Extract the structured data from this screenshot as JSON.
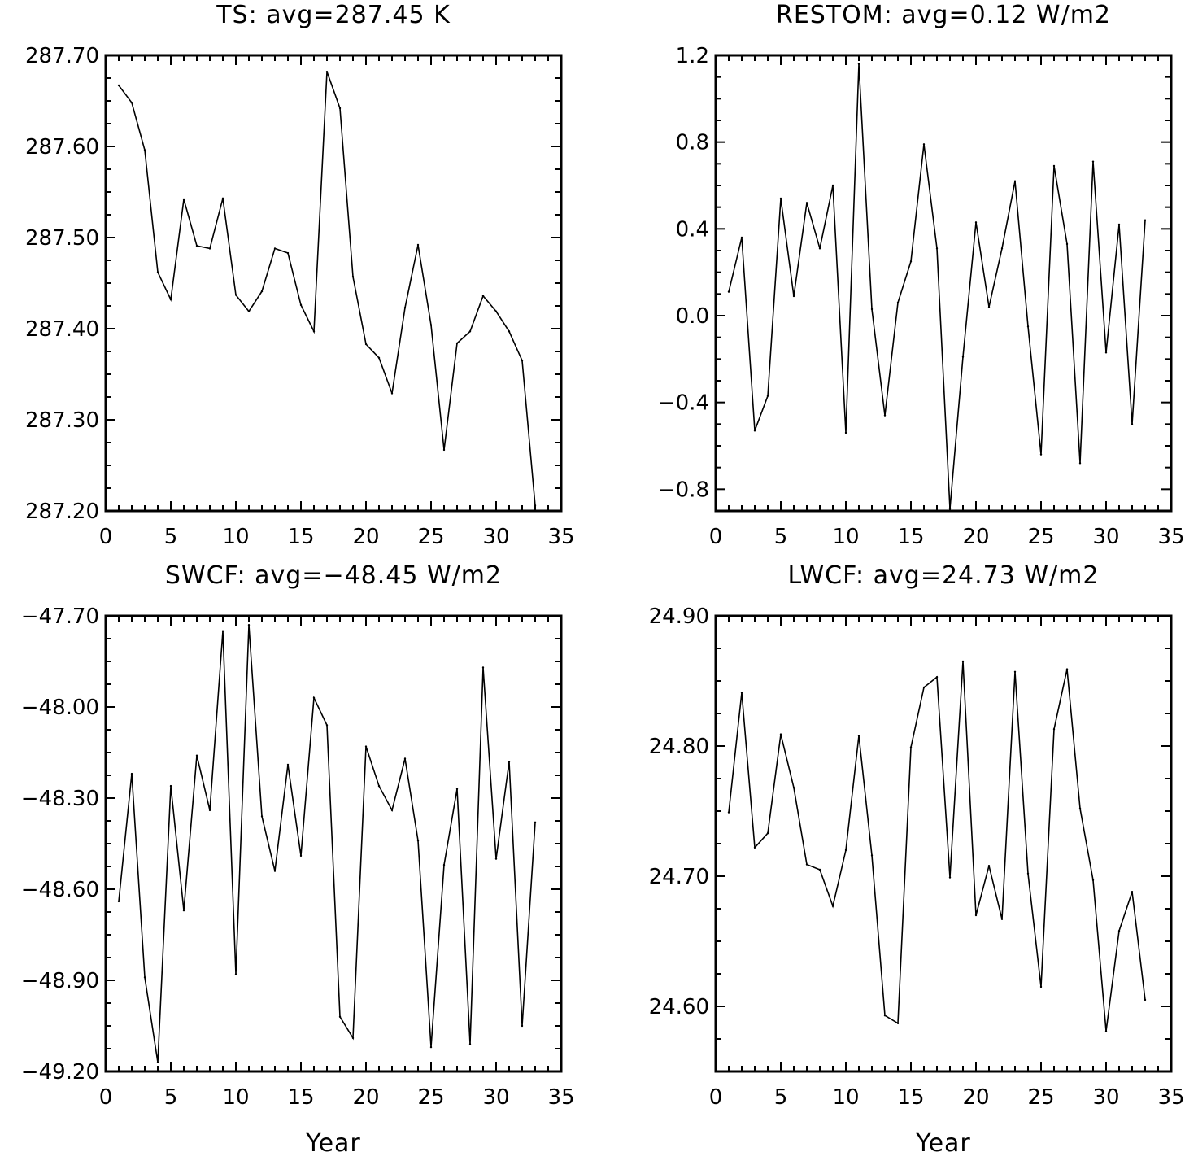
{
  "chart_data": [
    {
      "id": "ts",
      "type": "line",
      "title": "TS: avg=287.45 K",
      "xlabel": "",
      "ylabel": "",
      "xlim": [
        0,
        35
      ],
      "ylim": [
        287.2,
        287.7
      ],
      "x_ticks": [
        0,
        5,
        10,
        15,
        20,
        25,
        30,
        35
      ],
      "y_ticks": [
        287.2,
        287.3,
        287.4,
        287.5,
        287.6,
        287.7
      ],
      "y_tick_labels": [
        "287.20",
        "287.30",
        "287.40",
        "287.50",
        "287.60",
        "287.70"
      ],
      "x": [
        1,
        2,
        3,
        4,
        5,
        6,
        7,
        8,
        9,
        10,
        11,
        12,
        13,
        14,
        15,
        16,
        17,
        18,
        19,
        20,
        21,
        22,
        23,
        24,
        25,
        26,
        27,
        28,
        29,
        30,
        31,
        32,
        33
      ],
      "values": [
        287.667,
        287.648,
        287.596,
        287.462,
        287.432,
        287.542,
        287.491,
        287.488,
        287.543,
        287.437,
        287.419,
        287.441,
        287.488,
        287.483,
        287.426,
        287.397,
        287.682,
        287.642,
        287.457,
        287.383,
        287.368,
        287.329,
        287.423,
        287.492,
        287.404,
        287.267,
        287.384,
        287.397,
        287.436,
        287.419,
        287.397,
        287.365,
        287.206
      ],
      "grid": false
    },
    {
      "id": "restom",
      "type": "line",
      "title": "RESTOM: avg=0.12 W/m2",
      "xlabel": "",
      "ylabel": "",
      "xlim": [
        0,
        35
      ],
      "ylim": [
        -0.9,
        1.2
      ],
      "x_ticks": [
        0,
        5,
        10,
        15,
        20,
        25,
        30,
        35
      ],
      "y_ticks": [
        -0.8,
        -0.4,
        0.0,
        0.4,
        0.8,
        1.2
      ],
      "y_tick_labels": [
        "−0.8",
        "−0.4",
        "0.0",
        "0.4",
        "0.8",
        "1.2"
      ],
      "x": [
        1,
        2,
        3,
        4,
        5,
        6,
        7,
        8,
        9,
        10,
        11,
        12,
        13,
        14,
        15,
        16,
        17,
        18,
        19,
        20,
        21,
        22,
        23,
        24,
        25,
        26,
        27,
        28,
        29,
        30,
        31,
        32,
        33
      ],
      "values": [
        0.11,
        0.36,
        -0.53,
        -0.37,
        0.54,
        0.09,
        0.52,
        0.31,
        0.6,
        -0.54,
        1.16,
        0.03,
        -0.46,
        0.06,
        0.25,
        0.79,
        0.31,
        -0.89,
        -0.19,
        0.43,
        0.04,
        0.31,
        0.62,
        -0.05,
        -0.64,
        0.69,
        0.33,
        -0.68,
        0.71,
        -0.17,
        0.42,
        -0.5,
        0.44
      ],
      "grid": false
    },
    {
      "id": "swcf",
      "type": "line",
      "title": "SWCF: avg=−48.45 W/m2",
      "xlabel": "Year",
      "ylabel": "",
      "xlim": [
        0,
        35
      ],
      "ylim": [
        -49.2,
        -47.7
      ],
      "x_ticks": [
        0,
        5,
        10,
        15,
        20,
        25,
        30,
        35
      ],
      "y_ticks": [
        -49.2,
        -48.9,
        -48.6,
        -48.3,
        -48.0,
        -47.7
      ],
      "y_tick_labels": [
        "−49.20",
        "−48.90",
        "−48.60",
        "−48.30",
        "−48.00",
        "−47.70"
      ],
      "x": [
        1,
        2,
        3,
        4,
        5,
        6,
        7,
        8,
        9,
        10,
        11,
        12,
        13,
        14,
        15,
        16,
        17,
        18,
        19,
        20,
        21,
        22,
        23,
        24,
        25,
        26,
        27,
        28,
        29,
        30,
        31,
        32,
        33
      ],
      "values": [
        -48.64,
        -48.22,
        -48.89,
        -49.17,
        -48.26,
        -48.67,
        -48.16,
        -48.34,
        -47.75,
        -48.88,
        -47.73,
        -48.36,
        -48.54,
        -48.19,
        -48.49,
        -47.97,
        -48.06,
        -49.02,
        -49.09,
        -48.13,
        -48.26,
        -48.34,
        -48.17,
        -48.44,
        -49.12,
        -48.52,
        -48.27,
        -49.11,
        -47.87,
        -48.5,
        -48.18,
        -49.05,
        -48.38
      ],
      "grid": false
    },
    {
      "id": "lwcf",
      "type": "line",
      "title": "LWCF: avg=24.73 W/m2",
      "xlabel": "Year",
      "ylabel": "",
      "xlim": [
        0,
        35
      ],
      "ylim": [
        24.55,
        24.9
      ],
      "x_ticks": [
        0,
        5,
        10,
        15,
        20,
        25,
        30,
        35
      ],
      "y_ticks": [
        24.6,
        24.7,
        24.8,
        24.9
      ],
      "y_tick_labels": [
        "24.60",
        "24.70",
        "24.80",
        "24.90"
      ],
      "x": [
        1,
        2,
        3,
        4,
        5,
        6,
        7,
        8,
        9,
        10,
        11,
        12,
        13,
        14,
        15,
        16,
        17,
        18,
        19,
        20,
        21,
        22,
        23,
        24,
        25,
        26,
        27,
        28,
        29,
        30,
        31,
        32,
        33
      ],
      "values": [
        24.749,
        24.841,
        24.722,
        24.733,
        24.809,
        24.768,
        24.709,
        24.705,
        24.677,
        24.72,
        24.808,
        24.716,
        24.593,
        24.587,
        24.799,
        24.845,
        24.853,
        24.699,
        24.865,
        24.67,
        24.708,
        24.667,
        24.857,
        24.702,
        24.615,
        24.813,
        24.859,
        24.752,
        24.697,
        24.581,
        24.658,
        24.688,
        24.605
      ],
      "grid": false
    }
  ]
}
